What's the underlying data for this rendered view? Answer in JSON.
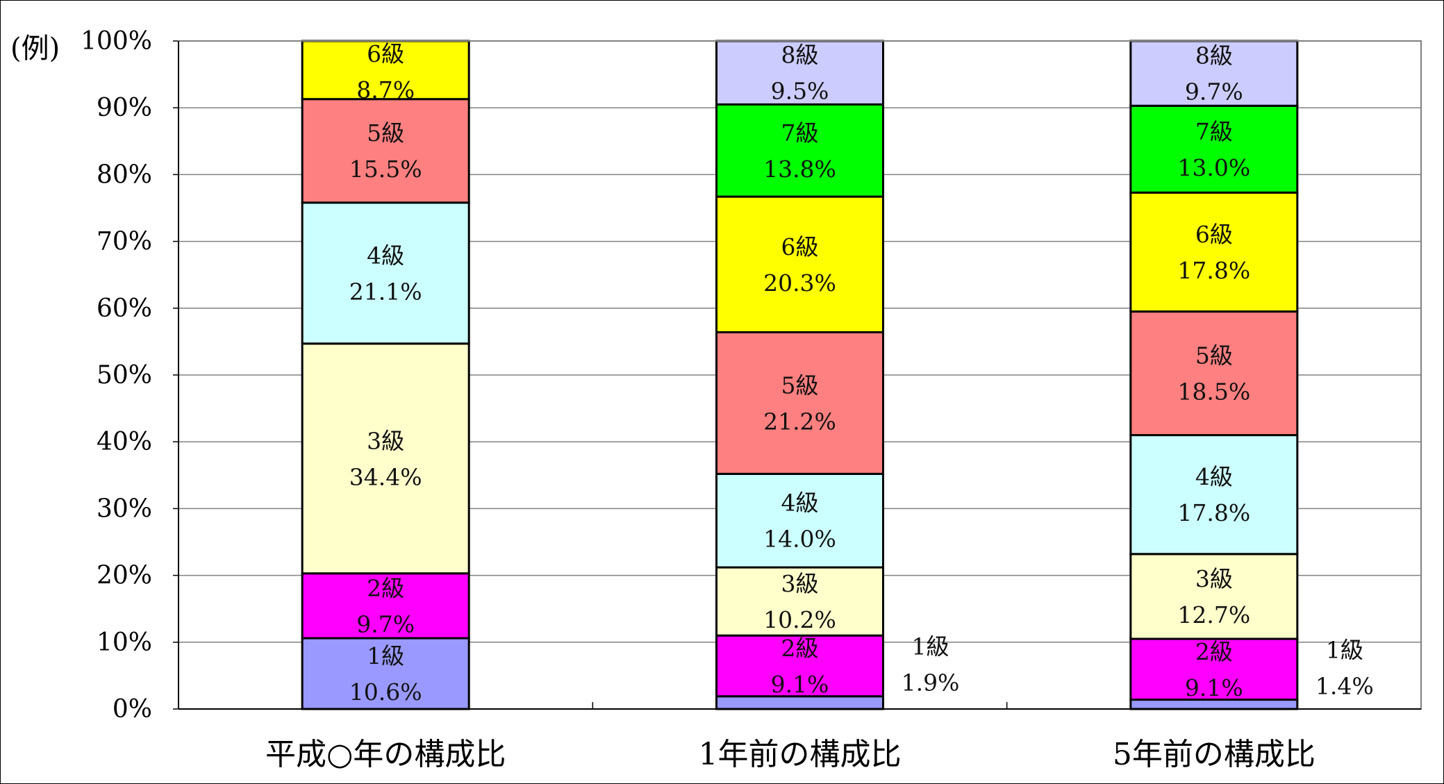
{
  "chart_data": {
    "type": "bar",
    "stacked": true,
    "orientation": "vertical",
    "corner_label": "(例)",
    "y_ticks": [
      "0%",
      "10%",
      "20%",
      "30%",
      "40%",
      "50%",
      "60%",
      "70%",
      "80%",
      "90%",
      "100%"
    ],
    "ylim": [
      0,
      100
    ],
    "grid": true,
    "categories": [
      "平成○年の構成比",
      "1年前の構成比",
      "5年前の構成比"
    ],
    "series": [
      {
        "name": "1級",
        "color": "#9999ff",
        "values": [
          10.6,
          1.9,
          1.4
        ],
        "labels": [
          "1級\n10.6%",
          "1級\n1.9%",
          "1級\n1.4%"
        ]
      },
      {
        "name": "2級",
        "color": "#ff00ff",
        "values": [
          9.7,
          9.1,
          9.1
        ],
        "labels": [
          "2級\n9.7%",
          "2級\n9.1%",
          "2級\n9.1%"
        ]
      },
      {
        "name": "3級",
        "color": "#ffffcc",
        "values": [
          34.4,
          10.2,
          12.7
        ],
        "labels": [
          "3級\n34.4%",
          "3級\n10.2%",
          "3級\n12.7%"
        ]
      },
      {
        "name": "4級",
        "color": "#ccffff",
        "values": [
          21.1,
          14.0,
          17.8
        ],
        "labels": [
          "4級\n21.1%",
          "4級\n14.0%",
          "4級\n17.8%"
        ]
      },
      {
        "name": "5級",
        "color": "#ff8080",
        "values": [
          15.5,
          21.2,
          18.5
        ],
        "labels": [
          "5級\n15.5%",
          "5級\n21.2%",
          "5級\n18.5%"
        ]
      },
      {
        "name": "6級",
        "color": "#ffff00",
        "values": [
          8.7,
          20.3,
          17.8
        ],
        "labels": [
          "6級\n8.7%",
          "6級\n20.3%",
          "6級\n17.8%"
        ]
      },
      {
        "name": "7級",
        "color": "#00ff00",
        "values": [
          0,
          13.8,
          13.0
        ],
        "labels": [
          "",
          "7級\n13.8%",
          "7級\n13.0%"
        ]
      },
      {
        "name": "8級",
        "color": "#ccccff",
        "values": [
          0,
          9.5,
          9.7
        ],
        "labels": [
          "",
          "8級\n9.5%",
          "8級\n9.7%"
        ]
      }
    ]
  }
}
